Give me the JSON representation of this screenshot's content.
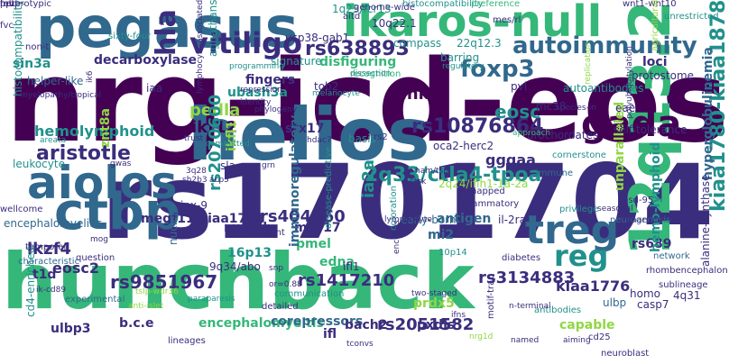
{
  "palette": {
    "dark-purple": "#440154",
    "indigo": "#3b2d7d",
    "slate": "#31688e",
    "teal": "#21918c",
    "green": "#35b779",
    "lime": "#90d743",
    "yellow": "#d9e021"
  },
  "words": [
    {
      "text": "nrg-icd-eos",
      "color": "#440154"
    },
    {
      "text": "hunchback",
      "color": "#35b779"
    },
    {
      "text": "rs1701704",
      "color": "#3b2d7d"
    },
    {
      "text": "helios",
      "color": "#31688e"
    },
    {
      "text": "pegasus",
      "color": "#31688e"
    },
    {
      "text": "ikaros-null",
      "color": "#35b779"
    },
    {
      "text": "12q13.2",
      "color": "#35b779"
    },
    {
      "text": "aiolos",
      "color": "#31688e"
    },
    {
      "text": "ctbp",
      "color": "#31688e"
    },
    {
      "text": "gada",
      "color": "#440154"
    },
    {
      "text": "treg",
      "color": "#31688e"
    },
    {
      "text": "reg",
      "color": "#21918c"
    },
    {
      "text": "vitiligo",
      "color": "#3b2d7d"
    },
    {
      "text": "autoimmunity",
      "color": "#31688e"
    },
    {
      "text": "foxp3",
      "color": "#31688e"
    },
    {
      "text": "kiaa1780-kiaa1878",
      "color": "#21918c"
    },
    {
      "text": "hla",
      "color": "#3b2d7d"
    },
    {
      "text": "rs10876864",
      "color": "#3b2d7d"
    },
    {
      "text": "2q33/ctla4-tpoa",
      "color": "#21918c"
    },
    {
      "text": "rs9851967",
      "color": "#3b2d7d"
    },
    {
      "text": "rs1417210",
      "color": "#3b2d7d"
    },
    {
      "text": "rs3134883",
      "color": "#3b2d7d"
    },
    {
      "text": "rs2051582",
      "color": "#3b2d7d"
    },
    {
      "text": "rs638893",
      "color": "#3b2d7d"
    },
    {
      "text": "aristotle",
      "color": "#3b2d7d"
    },
    {
      "text": "eosc",
      "color": "#21918c"
    },
    {
      "text": "pedla",
      "color": "#90d743"
    },
    {
      "text": "ikf12",
      "color": "#440154"
    },
    {
      "text": "clnk",
      "color": "#440154"
    },
    {
      "text": "gggaa",
      "color": "#3b2d7d"
    },
    {
      "text": "hemolymphoid",
      "color": "#21918c"
    },
    {
      "text": "lkzf4",
      "color": "#3b2d7d"
    },
    {
      "text": "eosc2",
      "color": "#3b2d7d"
    },
    {
      "text": "kiaa1776",
      "color": "#3b2d7d"
    },
    {
      "text": "rs2070600",
      "color": "#21918c"
    },
    {
      "text": "rs404860",
      "color": "#3b2d7d"
    },
    {
      "text": "megf11/kiaa1781",
      "color": "#3b2d7d"
    },
    {
      "text": "hyperglobulinemia",
      "color": "#31688e"
    },
    {
      "text": "encephalomyeltis",
      "color": "#35b779"
    },
    {
      "text": "corepressors",
      "color": "#31688e"
    },
    {
      "text": "bach2",
      "color": "#3b2d7d"
    },
    {
      "text": "sin3a",
      "color": "#21918c"
    },
    {
      "text": "decarboxylase",
      "color": "#3b2d7d"
    },
    {
      "text": "helper-like",
      "color": "#31688e"
    },
    {
      "text": "histocompatibility",
      "color": "#21918c"
    },
    {
      "text": "loci",
      "color": "#3b2d7d"
    },
    {
      "text": "protostome",
      "color": "#3b2d7d"
    },
    {
      "text": "ubash3a",
      "color": "#21918c"
    },
    {
      "text": "fingers",
      "color": "#3b2d7d"
    },
    {
      "text": "stx17",
      "color": "#3b2d7d"
    },
    {
      "text": "ia2a",
      "color": "#21918c"
    },
    {
      "text": "ikfl1",
      "color": "#90d743"
    },
    {
      "text": "edna",
      "color": "#35b779"
    },
    {
      "text": "pmel",
      "color": "#35b779"
    },
    {
      "text": "mi2",
      "color": "#31688e"
    },
    {
      "text": "antigen",
      "color": "#31688e"
    },
    {
      "text": "rs689",
      "color": "#3b2d7d"
    },
    {
      "text": "unparalleled",
      "color": "#90d743"
    },
    {
      "text": "capable",
      "color": "#90d743"
    },
    {
      "text": "ulbp",
      "color": "#31688e"
    },
    {
      "text": "ulbp3",
      "color": "#3b2d7d"
    },
    {
      "text": "b.c.e",
      "color": "#3b2d7d"
    },
    {
      "text": "ifl",
      "color": "#3b2d7d"
    },
    {
      "text": "pxdls",
      "color": "#3b2d7d"
    },
    {
      "text": "prdx5",
      "color": "#90d743"
    },
    {
      "text": "mir-17",
      "color": "#3b2d7d"
    },
    {
      "text": "immunoregulatory",
      "color": "#31688e"
    },
    {
      "text": "myh7b",
      "color": "#3b2d7d"
    },
    {
      "text": "16p13",
      "color": "#21918c"
    },
    {
      "text": "9q34/abo",
      "color": "#3b2d7d"
    },
    {
      "text": "jpx-9",
      "color": "#3b2d7d"
    },
    {
      "text": "leukocyte",
      "color": "#21918c"
    },
    {
      "text": "znt8a",
      "color": "#90d743"
    },
    {
      "text": "encephalomyelitis",
      "color": "#31688e"
    },
    {
      "text": "cd4-enriched",
      "color": "#21918c"
    },
    {
      "text": "t1d",
      "color": "#3b2d7d"
    },
    {
      "text": "oca2-herc2",
      "color": "#3b2d7d"
    },
    {
      "text": "urochordates",
      "color": "#3b2d7d"
    },
    {
      "text": "self-tolerance",
      "color": "#3b2d7d"
    },
    {
      "text": "casp7",
      "color": "#3b2d7d"
    },
    {
      "text": "homo",
      "color": "#3b2d7d"
    },
    {
      "text": "4q31",
      "color": "#3b2d7d"
    },
    {
      "text": "hemo-lymphoid",
      "color": "#21918c"
    },
    {
      "text": "rhombencephalon",
      "color": "#3b2d7d"
    },
    {
      "text": "alanine-synthase",
      "color": "#3b2d7d"
    },
    {
      "text": "basis",
      "color": "#21918c"
    },
    {
      "text": "mc38",
      "color": "#3b2d7d"
    },
    {
      "text": "eae",
      "color": "#3b2d7d"
    },
    {
      "text": "pvl",
      "color": "#3b2d7d"
    },
    {
      "text": "tob2",
      "color": "#3b2d7d"
    },
    {
      "text": "agnathans",
      "color": "#21918c"
    },
    {
      "text": "compass",
      "color": "#21918c"
    },
    {
      "text": "barring",
      "color": "#21918c"
    },
    {
      "text": "autoantibodies",
      "color": "#21918c"
    },
    {
      "text": "usp38-gab1",
      "color": "#3b2d7d"
    },
    {
      "text": "disfiguring",
      "color": "#35b779"
    },
    {
      "text": "signature",
      "color": "#21918c"
    },
    {
      "text": "1q23/fcr13",
      "color": "#21918c"
    },
    {
      "text": "10q22.1",
      "color": "#3b2d7d"
    },
    {
      "text": "22q12.3",
      "color": "#21918c"
    },
    {
      "text": "il-2ra",
      "color": "#3b2d7d"
    },
    {
      "text": "early-born",
      "color": "#31688e"
    },
    {
      "text": "10p14",
      "color": "#21918c"
    },
    {
      "text": "2q24/ifih1-1a-2a",
      "color": "#90d743"
    },
    {
      "text": "sla",
      "color": "#3b2d7d"
    },
    {
      "text": "ifl1",
      "color": "#3b2d7d"
    },
    {
      "text": "iaa",
      "color": "#3b2d7d"
    },
    {
      "text": "sixty-four",
      "color": "#21918c"
    },
    {
      "text": "heterotypic",
      "color": "#3b2d7d"
    },
    {
      "text": "histocompatibility",
      "color": "#21918c"
    },
    {
      "text": "preference",
      "color": "#35b779"
    },
    {
      "text": "wnt1-wnt10",
      "color": "#3b2d7d"
    },
    {
      "text": "unrestricted",
      "color": "#21918c"
    },
    {
      "text": "agricultural",
      "color": "#90d743"
    },
    {
      "text": "genome-wide",
      "color": "#3b2d7d"
    },
    {
      "text": "aitd",
      "color": "#3b2d7d"
    },
    {
      "text": "mes/rl",
      "color": "#3b2d7d"
    },
    {
      "text": "fvc",
      "color": "#3b2d7d"
    },
    {
      "text": "non-t",
      "color": "#3b2d7d"
    },
    {
      "text": "wellcome",
      "color": "#3b2d7d"
    },
    {
      "text": "characteristic",
      "color": "#31688e"
    },
    {
      "text": "question",
      "color": "#3b2d7d"
    },
    {
      "text": "temporal",
      "color": "#3b2d7d"
    },
    {
      "text": "nucleic",
      "color": "#31688e"
    },
    {
      "text": "experimental",
      "color": "#31688e"
    },
    {
      "text": "lineages",
      "color": "#3b2d7d"
    },
    {
      "text": "detailed",
      "color": "#3b2d7d"
    },
    {
      "text": "diabetes",
      "color": "#3b2d7d"
    },
    {
      "text": "neurogenesis",
      "color": "#31688e"
    },
    {
      "text": "privilege",
      "color": "#21918c"
    },
    {
      "text": "sharpen",
      "color": "#3b2d7d"
    },
    {
      "text": "sublineage",
      "color": "#3b2d7d"
    },
    {
      "text": "network",
      "color": "#31688e"
    },
    {
      "text": "neuroblast",
      "color": "#3b2d7d"
    },
    {
      "text": "antibodies",
      "color": "#21918c"
    },
    {
      "text": "cd25",
      "color": "#3b2d7d"
    },
    {
      "text": "motif-trap",
      "color": "#3b2d7d"
    },
    {
      "text": "immune",
      "color": "#31688e"
    },
    {
      "text": "cornerstone",
      "color": "#21918c"
    },
    {
      "text": "inflammatory",
      "color": "#3b2d7d"
    },
    {
      "text": "unmapped",
      "color": "#3b2d7d"
    },
    {
      "text": "account",
      "color": "#3b2d7d"
    },
    {
      "text": "recognition",
      "color": "#35b779"
    },
    {
      "text": "rs2",
      "color": "#3b2d7d"
    },
    {
      "text": "dissection",
      "color": "#21918c"
    },
    {
      "text": "repression",
      "color": "#3b2d7d"
    },
    {
      "text": "identity",
      "color": "#3b2d7d"
    },
    {
      "text": "phylogeny",
      "color": "#3b2d7d"
    },
    {
      "text": "melanocyte",
      "color": "#21918c"
    },
    {
      "text": "hdac7",
      "color": "#3b2d7d"
    },
    {
      "text": "ham/tsp",
      "color": "#3b2d7d"
    },
    {
      "text": "ctsk",
      "color": "#3b2d7d"
    },
    {
      "text": "coloration",
      "color": "#21918c"
    },
    {
      "text": "disease-predictive",
      "color": "#21918c"
    },
    {
      "text": "communication",
      "color": "#21918c"
    },
    {
      "text": "tconvs",
      "color": "#3b2d7d"
    },
    {
      "text": "two-staged",
      "color": "#3b2d7d"
    },
    {
      "text": "aiming",
      "color": "#3b2d7d"
    },
    {
      "text": "committed",
      "color": "#21918c"
    },
    {
      "text": "trust",
      "color": "#3b2d7d"
    },
    {
      "text": "areata",
      "color": "#21918c"
    },
    {
      "text": "gwas",
      "color": "#3b2d7d"
    },
    {
      "text": "sh2b3",
      "color": "#3b2d7d"
    },
    {
      "text": "3q28",
      "color": "#3b2d7d"
    },
    {
      "text": "lymphocyte-associated",
      "color": "#3b2d7d"
    },
    {
      "text": "myelopathy/tropical",
      "color": "#3b2d7d"
    },
    {
      "text": "ik6",
      "color": "#3b2d7d"
    },
    {
      "text": "regulatory",
      "color": "#21918c"
    },
    {
      "text": "programming",
      "color": "#21918c"
    },
    {
      "text": "polyubiquitylation",
      "color": "#3b2d7d"
    },
    {
      "text": "replication",
      "color": "#90d743"
    },
    {
      "text": "species-in",
      "color": "#3b2d7d"
    },
    {
      "text": "seasonal",
      "color": "#3b2d7d"
    },
    {
      "text": "psd-95",
      "color": "#3b2d7d"
    },
    {
      "text": "tslp-wdr36",
      "color": "#90d743"
    },
    {
      "text": "anti-islet",
      "color": "#90d743"
    },
    {
      "text": "paraparesis",
      "color": "#21918c"
    },
    {
      "text": "lymphocyte",
      "color": "#3b2d7d"
    },
    {
      "text": "encodes",
      "color": "#3b2d7d"
    },
    {
      "text": "approach",
      "color": "#35b779"
    },
    {
      "text": "acp5",
      "color": "#3b2d7d"
    },
    {
      "text": "grn",
      "color": "#3b2d7d"
    },
    {
      "text": "snp",
      "color": "#3b2d7d"
    },
    {
      "text": "ik-cd89",
      "color": "#3b2d7d"
    },
    {
      "text": "n-terminal",
      "color": "#3b2d7d"
    },
    {
      "text": "or=0.88",
      "color": "#3b2d7d"
    },
    {
      "text": "mog",
      "color": "#3b2d7d"
    },
    {
      "text": "named",
      "color": "#3b2d7d"
    },
    {
      "text": "ifns",
      "color": "#3b2d7d"
    },
    {
      "text": "nrg1d",
      "color": "#90d743"
    },
    {
      "text": "fev",
      "color": "#3b2d7d"
    },
    {
      "text": "mbp",
      "color": "#3b2d7d"
    },
    {
      "text": "ppo",
      "color": "#3b2d7d"
    }
  ]
}
